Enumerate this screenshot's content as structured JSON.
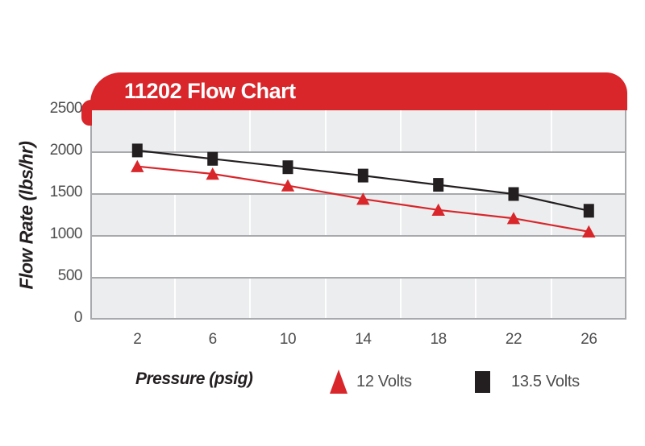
{
  "chart": {
    "title": "11202 Flow Chart",
    "y_axis_label": "Flow Rate (lbs/hr)",
    "x_axis_label": "Pressure (psig)"
  },
  "legend": {
    "series1_label": "12 Volts",
    "series2_label": "13.5 Volts"
  },
  "colors": {
    "banner_red": "#d8262b",
    "series_12v_red": "#d8262b",
    "series_135v_black": "#231f20",
    "band_gray": "#ebedee",
    "gridline_gray": "#a7a9ac",
    "tick_text_gray": "#4d4d4f"
  },
  "chart_data": {
    "type": "line",
    "title": "11202 Flow Chart",
    "xlabel": "Pressure (psig)",
    "ylabel": "Flow Rate (lbs/hr)",
    "x": [
      2,
      6,
      10,
      14,
      18,
      22,
      26
    ],
    "series": [
      {
        "name": "12 Volts",
        "marker": "triangle",
        "color": "#d8262b",
        "values": [
          1830,
          1740,
          1600,
          1440,
          1310,
          1210,
          1050
        ]
      },
      {
        "name": "13.5 Volts",
        "marker": "square",
        "color": "#231f20",
        "values": [
          2020,
          1920,
          1820,
          1720,
          1610,
          1500,
          1300
        ]
      }
    ],
    "xticks": [
      2,
      6,
      10,
      14,
      18,
      22,
      26
    ],
    "yticks": [
      0,
      500,
      1000,
      1500,
      2000,
      2500
    ],
    "minor_xticks": [
      4,
      8,
      12,
      16,
      20,
      24
    ],
    "xlim": [
      -0.5,
      28
    ],
    "ylim": [
      0,
      2500
    ],
    "grid": true,
    "band_fill": "horizontal-alternating",
    "legend_position": "bottom"
  }
}
